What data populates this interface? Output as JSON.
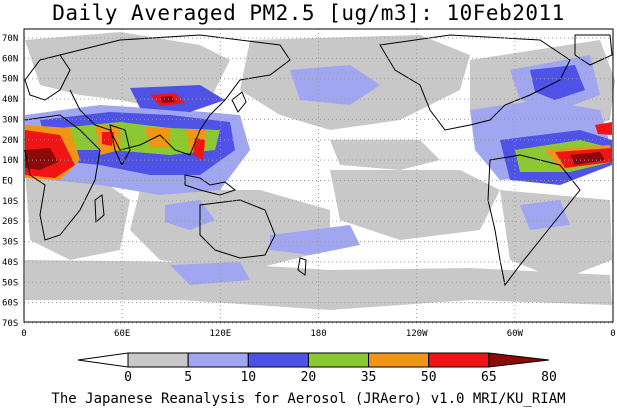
{
  "title": "Daily Averaged PM2.5 [ug/m3]: 10Feb2011",
  "credit": "The Japanese Reanalysis for Aerosol (JRAero) v1.0 MRI/KU_RIAM",
  "latitude_labels": [
    "70N",
    "60N",
    "50N",
    "40N",
    "30N",
    "20N",
    "10N",
    "EQ",
    "10S",
    "20S",
    "30S",
    "40S",
    "50S",
    "60S",
    "70S"
  ],
  "longitude_labels": [
    "0",
    "60E",
    "120E",
    "180",
    "120W",
    "60W",
    "0"
  ],
  "colorbar": {
    "levels": [
      "0",
      "5",
      "10",
      "20",
      "35",
      "50",
      "65",
      "80"
    ],
    "colors": [
      "#ffffff",
      "#c8c8c8",
      "#a0a6f0",
      "#4f52e6",
      "#8cc832",
      "#f09614",
      "#f01414",
      "#8c0a0a"
    ]
  },
  "colors": {
    "land_outline": "#000000",
    "grid": "#9a9a9a",
    "ocean_background": "#ffffff"
  }
}
